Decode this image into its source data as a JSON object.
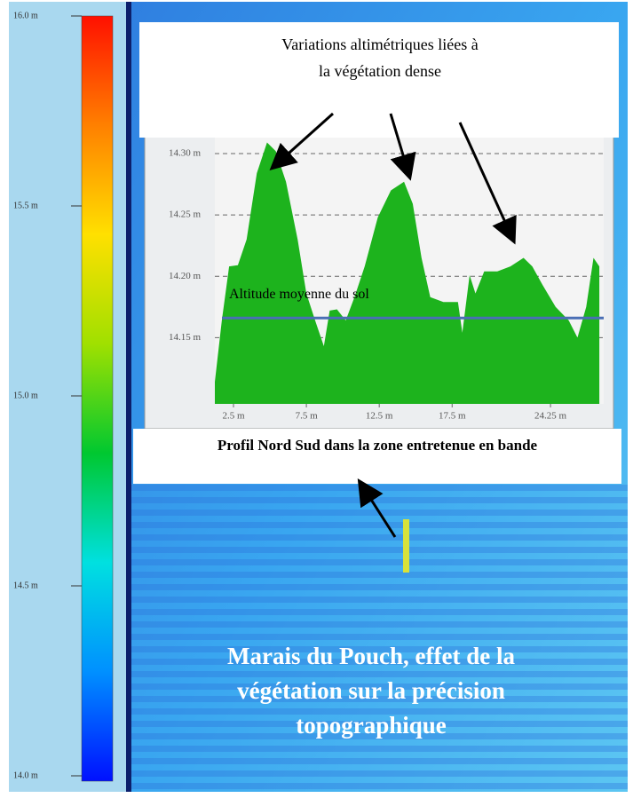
{
  "chart_data": [
    {
      "type": "colorbar",
      "ylim": [
        13.986,
        16.0
      ],
      "yticks": [
        {
          "value": 16.0,
          "label": "16.0 m"
        },
        {
          "value": 15.5,
          "label": "15.5 m"
        },
        {
          "value": 15.0,
          "label": "15.0 m"
        },
        {
          "value": 14.5,
          "label": "14.5 m"
        },
        {
          "value": 14.0,
          "label": "14.0 m"
        }
      ],
      "colors": [
        "#0010ff",
        "#0090ff",
        "#00e0e0",
        "#00c830",
        "#a0e000",
        "#ffe000",
        "#ff8000",
        "#ff1000"
      ]
    },
    {
      "type": "area",
      "annotation": [
        "Variations altimétriques liées à",
        "la végétation dense"
      ],
      "caption": "Profil Nord Sud dans la zone entretenue en bande",
      "color": "#1db31d",
      "x": [
        1.22,
        1.7,
        2.2,
        2.8,
        3.4,
        4.1,
        4.8,
        5.4,
        6.1,
        6.9,
        7.5,
        8.1,
        8.7,
        9.1,
        9.6,
        10.2,
        10.8,
        11.5,
        12.4,
        13.3,
        14.2,
        14.8,
        15.4,
        16.0,
        16.9,
        17.9,
        18.2,
        18.7,
        19.1,
        19.7,
        20.6,
        21.5,
        22.4,
        23.0,
        23.7,
        24.6,
        25.5,
        26.1,
        26.7,
        27.2,
        27.6
      ],
      "values": [
        14.114,
        14.164,
        14.208,
        14.209,
        14.23,
        14.284,
        14.309,
        14.302,
        14.277,
        14.23,
        14.186,
        14.164,
        14.143,
        14.172,
        14.173,
        14.164,
        14.183,
        14.208,
        14.248,
        14.27,
        14.277,
        14.259,
        14.215,
        14.183,
        14.179,
        14.179,
        14.154,
        14.201,
        14.186,
        14.204,
        14.204,
        14.208,
        14.215,
        14.208,
        14.193,
        14.175,
        14.164,
        14.15,
        14.175,
        14.215,
        14.208
      ],
      "xlim": [
        1.22,
        27.9
      ],
      "ylim": [
        14.096,
        14.313
      ],
      "xticks": [
        {
          "value": 2.5,
          "label": "2.5 m"
        },
        {
          "value": 7.5,
          "label": "7.5 m"
        },
        {
          "value": 12.5,
          "label": "12.5 m"
        },
        {
          "value": 17.5,
          "label": "17.5 m"
        },
        {
          "value": 24.25,
          "label": "24.25 m"
        }
      ],
      "yticks": [
        {
          "value": 14.3,
          "label": "14.30 m"
        },
        {
          "value": 14.25,
          "label": "14.25 m"
        },
        {
          "value": 14.2,
          "label": "14.20 m"
        },
        {
          "value": 14.15,
          "label": "14.15 m"
        }
      ],
      "grid": true,
      "mean_line": {
        "label": "Altitude moyenne du sol",
        "value": 14.166,
        "color": "#4a6fb5"
      }
    }
  ],
  "map": {
    "title": [
      "Marais du Pouch, effet de la",
      "végétation sur la précision",
      "topographique"
    ]
  }
}
